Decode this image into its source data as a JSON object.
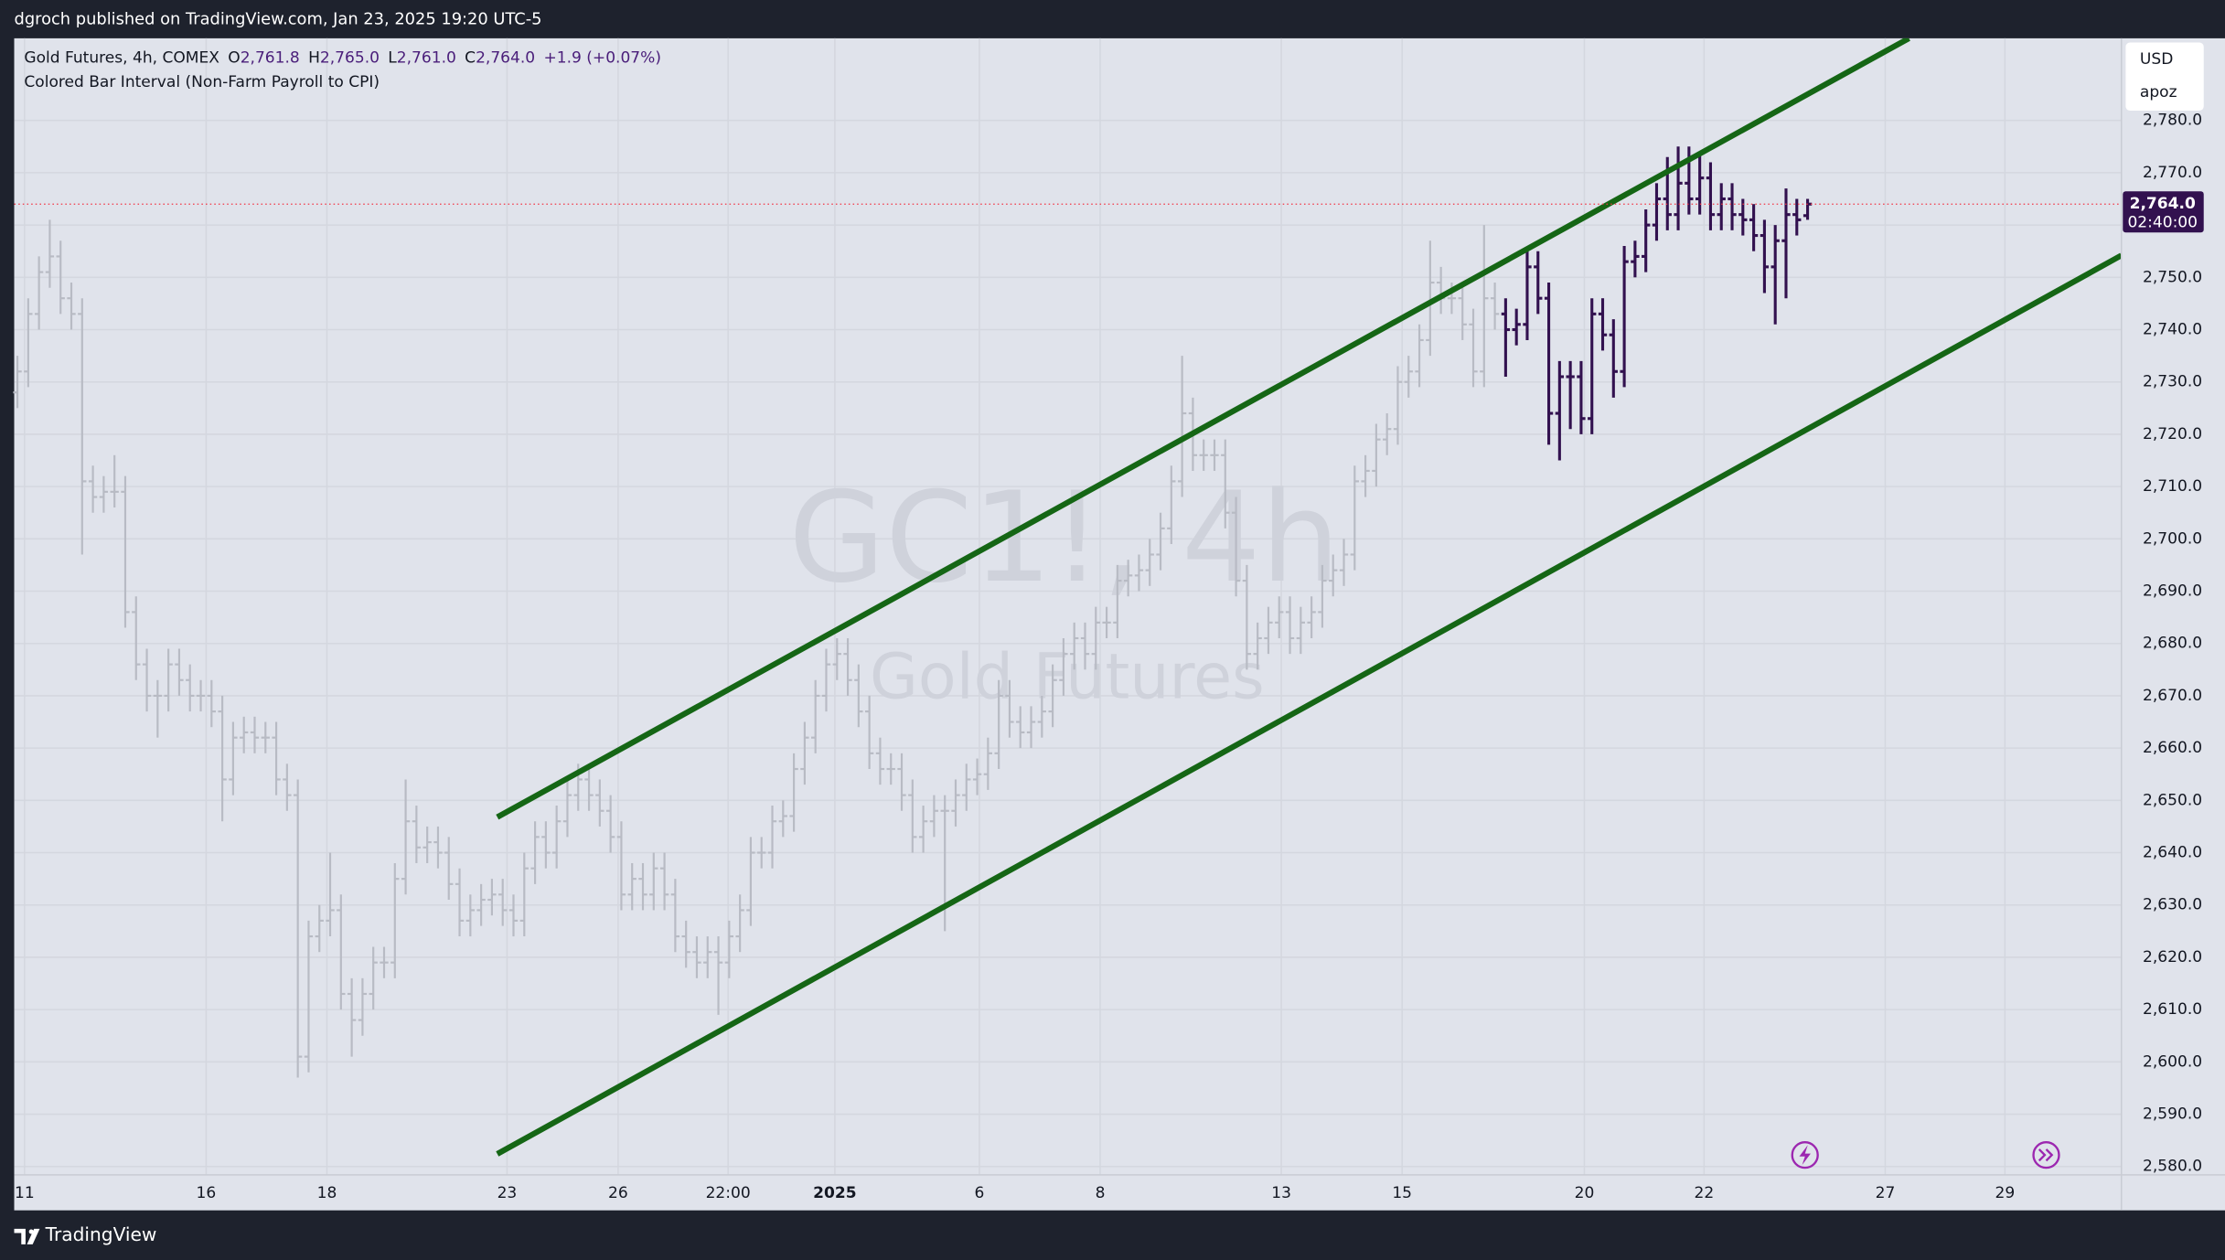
{
  "page": {
    "header": "dgroch published on TradingView.com, Jan 23, 2025 19:20 UTC-5",
    "brand": "TradingView",
    "currency": "USD",
    "user": "apoz"
  },
  "chart_data": {
    "type": "ohlc",
    "grid": true,
    "watermark": [
      "GC1!, 4h",
      "Gold Futures"
    ],
    "legend": {
      "symbol": "Gold Futures, 4h, COMEX",
      "fields": [
        {
          "key": "O",
          "value": "2,761.8"
        },
        {
          "key": "H",
          "value": "2,765.0"
        },
        {
          "key": "L",
          "value": "2,761.0"
        },
        {
          "key": "C",
          "value": "2,764.0"
        }
      ],
      "change": "+1.9 (+0.07%)",
      "indicator": "Colored Bar Interval (Non-Farm Payroll to CPI)"
    },
    "xlim": [
      -0.3,
      195.1
    ],
    "xticks": [
      {
        "value": 0.66,
        "label": "11"
      },
      {
        "value": 17.5,
        "label": "16"
      },
      {
        "value": 28.7,
        "label": "18"
      },
      {
        "value": 45.4,
        "label": "23"
      },
      {
        "value": 55.7,
        "label": "26"
      },
      {
        "value": 65.9,
        "label": "22:00"
      },
      {
        "value": 75.8,
        "label": "2025"
      },
      {
        "value": 89.2,
        "label": "6"
      },
      {
        "value": 100.4,
        "label": "8"
      },
      {
        "value": 117.2,
        "label": "13"
      },
      {
        "value": 128.4,
        "label": "15"
      },
      {
        "value": 145.3,
        "label": "20"
      },
      {
        "value": 156.4,
        "label": "22"
      },
      {
        "value": 173.2,
        "label": "27"
      },
      {
        "value": 184.3,
        "label": "29"
      }
    ],
    "ylim": [
      2578.4,
      2795.7
    ],
    "yticks": [
      {
        "value": 2580,
        "label": "2,580.0"
      },
      {
        "value": 2590,
        "label": "2,590.0"
      },
      {
        "value": 2600,
        "label": "2,600.0"
      },
      {
        "value": 2610,
        "label": "2,610.0"
      },
      {
        "value": 2620,
        "label": "2,620.0"
      },
      {
        "value": 2630,
        "label": "2,630.0"
      },
      {
        "value": 2640,
        "label": "2,640.0"
      },
      {
        "value": 2650,
        "label": "2,650.0"
      },
      {
        "value": 2660,
        "label": "2,660.0"
      },
      {
        "value": 2670,
        "label": "2,670.0"
      },
      {
        "value": 2680,
        "label": "2,680.0"
      },
      {
        "value": 2690,
        "label": "2,690.0"
      },
      {
        "value": 2700,
        "label": "2,700.0"
      },
      {
        "value": 2710,
        "label": "2,710.0"
      },
      {
        "value": 2720,
        "label": "2,720.0"
      },
      {
        "value": 2730,
        "label": "2,730.0"
      },
      {
        "value": 2740,
        "label": "2,740.0"
      },
      {
        "value": 2750,
        "label": "2,750.0"
      },
      {
        "value": 2760,
        "label": "2,760.0"
      },
      {
        "value": 2770,
        "label": "2,770.0"
      },
      {
        "value": 2780,
        "label": "2,780.0"
      }
    ],
    "last_price": {
      "value": 2764,
      "label": "2,764.0",
      "countdown": "02:40:00",
      "color": "#32114f",
      "line_color": "#f23645"
    },
    "trend_lines": [
      {
        "color": "#156615",
        "x": [
          44.5,
          175.4
        ],
        "y": [
          2646.8,
          2795.7
        ]
      },
      {
        "color": "#156615",
        "x": [
          44.5,
          195.1
        ],
        "y": [
          2582.4,
          2754.2
        ]
      }
    ],
    "series": [
      {
        "color": "#b8bbc4",
        "x": [
          0,
          1,
          2,
          3,
          4,
          5,
          6,
          7,
          8,
          9,
          10,
          11,
          12,
          13,
          14,
          15,
          16,
          17,
          18,
          19,
          20,
          21,
          22,
          23,
          24,
          25,
          26,
          27,
          28,
          29,
          30,
          31,
          32,
          33,
          34,
          35,
          36,
          37,
          38,
          39,
          40,
          41,
          42,
          43,
          44,
          45,
          46,
          47,
          48,
          49,
          50,
          51,
          52,
          53,
          54,
          55,
          56,
          57,
          58,
          59,
          60,
          61,
          62,
          63,
          64,
          65,
          66,
          67,
          68,
          69,
          70,
          71,
          72,
          73,
          74,
          75,
          76,
          77,
          78,
          79,
          80,
          81,
          82,
          83,
          84,
          85,
          86,
          87,
          88,
          89,
          90,
          91,
          92,
          93,
          94,
          95,
          96,
          97,
          98,
          99,
          100,
          101,
          102,
          103,
          104,
          105,
          106,
          107,
          108,
          109,
          110,
          111,
          112,
          113,
          114,
          115,
          116,
          117,
          118,
          119,
          120,
          121,
          122,
          123,
          124,
          125,
          126,
          127,
          128,
          129,
          130,
          131,
          132,
          133,
          134,
          135,
          136,
          137
        ],
        "open": [
          2728,
          2732,
          2743,
          2751,
          2754,
          2746,
          2743,
          2711,
          2708,
          2709,
          2709,
          2686,
          2676,
          2670,
          2670,
          2676,
          2673,
          2670,
          2670,
          2667,
          2654,
          2662,
          2663,
          2662,
          2662,
          2654,
          2651,
          2601,
          2624,
          2627,
          2629,
          2613,
          2608,
          2613,
          2619,
          2619,
          2635,
          2646,
          2641,
          2642,
          2640,
          2634,
          2627,
          2629,
          2631,
          2632,
          2629,
          2627,
          2637,
          2643,
          2640,
          2646,
          2651,
          2654,
          2651,
          2648,
          2643,
          2632,
          2635,
          2632,
          2637,
          2632,
          2624,
          2621,
          2619,
          2621,
          2619,
          2624,
          2629,
          2640,
          2640,
          2646,
          2647,
          2656,
          2662,
          2670,
          2676,
          2678,
          2673,
          2667,
          2659,
          2656,
          2656,
          2651,
          2643,
          2646,
          2648,
          2648,
          2651,
          2654,
          2655,
          2659,
          2670,
          2665,
          2663,
          2665,
          2667,
          2673,
          2678,
          2681,
          2678,
          2684,
          2684,
          2692,
          2693,
          2694,
          2697,
          2702,
          2711,
          2724,
          2716,
          2716,
          2716,
          2705,
          2692,
          2678,
          2681,
          2684,
          2686,
          2681,
          2684,
          2686,
          2692,
          2694,
          2697,
          2711,
          2713,
          2719,
          2721,
          2730,
          2732,
          2738,
          2749,
          2746,
          2746,
          2741,
          2732,
          2746
        ],
        "high": [
          2735,
          2746,
          2754,
          2761,
          2757,
          2749,
          2746,
          2714,
          2712,
          2716,
          2712,
          2689,
          2679,
          2673,
          2679,
          2679,
          2676,
          2673,
          2673,
          2670,
          2665,
          2666,
          2666,
          2665,
          2665,
          2657,
          2654,
          2627,
          2630,
          2640,
          2632,
          2616,
          2616,
          2622,
          2622,
          2638,
          2654,
          2649,
          2645,
          2645,
          2643,
          2637,
          2632,
          2634,
          2635,
          2635,
          2632,
          2640,
          2646,
          2646,
          2649,
          2654,
          2657,
          2657,
          2654,
          2651,
          2646,
          2638,
          2638,
          2640,
          2640,
          2635,
          2627,
          2624,
          2624,
          2624,
          2627,
          2632,
          2643,
          2643,
          2649,
          2650,
          2659,
          2665,
          2673,
          2679,
          2681,
          2681,
          2676,
          2670,
          2662,
          2659,
          2659,
          2654,
          2649,
          2651,
          2651,
          2654,
          2657,
          2658,
          2662,
          2673,
          2673,
          2668,
          2668,
          2670,
          2676,
          2681,
          2684,
          2684,
          2687,
          2687,
          2695,
          2696,
          2697,
          2700,
          2705,
          2714,
          2735,
          2727,
          2719,
          2719,
          2719,
          2708,
          2695,
          2684,
          2687,
          2689,
          2689,
          2687,
          2689,
          2695,
          2697,
          2700,
          2714,
          2716,
          2722,
          2724,
          2733,
          2735,
          2741,
          2757,
          2752,
          2749,
          2749,
          2744,
          2760,
          2749
        ],
        "low": [
          2725,
          2729,
          2740,
          2748,
          2743,
          2740,
          2697,
          2705,
          2705,
          2706,
          2683,
          2673,
          2667,
          2662,
          2667,
          2670,
          2667,
          2667,
          2664,
          2646,
          2651,
          2659,
          2659,
          2659,
          2651,
          2648,
          2597,
          2598,
          2621,
          2624,
          2610,
          2601,
          2605,
          2610,
          2616,
          2616,
          2632,
          2638,
          2638,
          2637,
          2631,
          2624,
          2624,
          2626,
          2628,
          2626,
          2624,
          2624,
          2634,
          2637,
          2637,
          2643,
          2648,
          2648,
          2645,
          2640,
          2629,
          2629,
          2629,
          2629,
          2629,
          2621,
          2618,
          2616,
          2616,
          2609,
          2616,
          2621,
          2626,
          2637,
          2637,
          2643,
          2644,
          2653,
          2659,
          2667,
          2673,
          2670,
          2664,
          2656,
          2653,
          2653,
          2648,
          2640,
          2640,
          2643,
          2625,
          2645,
          2648,
          2651,
          2652,
          2656,
          2662,
          2660,
          2660,
          2662,
          2664,
          2670,
          2675,
          2675,
          2675,
          2681,
          2681,
          2689,
          2690,
          2691,
          2694,
          2699,
          2708,
          2713,
          2713,
          2713,
          2702,
          2689,
          2675,
          2675,
          2678,
          2681,
          2678,
          2678,
          2681,
          2683,
          2689,
          2691,
          2694,
          2708,
          2710,
          2716,
          2718,
          2727,
          2729,
          2735,
          2743,
          2743,
          2738,
          2729,
          2729,
          2740
        ],
        "close": [
          2732,
          2743,
          2751,
          2754,
          2746,
          2743,
          2711,
          2708,
          2709,
          2709,
          2686,
          2676,
          2670,
          2670,
          2676,
          2673,
          2670,
          2670,
          2667,
          2654,
          2662,
          2663,
          2662,
          2662,
          2654,
          2651,
          2601,
          2624,
          2627,
          2629,
          2613,
          2608,
          2613,
          2619,
          2619,
          2635,
          2646,
          2641,
          2642,
          2640,
          2634,
          2627,
          2629,
          2631,
          2632,
          2629,
          2627,
          2637,
          2643,
          2640,
          2646,
          2651,
          2654,
          2651,
          2648,
          2643,
          2632,
          2635,
          2632,
          2637,
          2632,
          2624,
          2621,
          2619,
          2621,
          2619,
          2624,
          2629,
          2640,
          2640,
          2646,
          2647,
          2656,
          2662,
          2670,
          2676,
          2678,
          2673,
          2667,
          2659,
          2656,
          2656,
          2651,
          2643,
          2646,
          2648,
          2648,
          2651,
          2654,
          2655,
          2659,
          2670,
          2665,
          2663,
          2665,
          2667,
          2673,
          2678,
          2681,
          2678,
          2684,
          2684,
          2692,
          2693,
          2694,
          2697,
          2702,
          2711,
          2724,
          2716,
          2716,
          2716,
          2705,
          2692,
          2678,
          2681,
          2684,
          2686,
          2681,
          2684,
          2686,
          2692,
          2694,
          2697,
          2711,
          2713,
          2719,
          2721,
          2730,
          2732,
          2738,
          2749,
          2746,
          2746,
          2741,
          2732,
          2746,
          2743
        ]
      },
      {
        "color": "#32114f",
        "x": [
          138,
          139,
          140,
          141,
          142,
          143,
          144,
          145,
          146,
          147,
          148,
          149,
          150,
          151,
          152,
          153,
          154,
          155,
          156,
          157,
          158,
          159,
          160,
          161,
          162,
          163,
          164,
          165,
          166
        ],
        "open": [
          2743,
          2740,
          2741,
          2752,
          2746,
          2724,
          2731,
          2731,
          2723,
          2743,
          2739,
          2732,
          2753,
          2754,
          2760,
          2765,
          2762,
          2768,
          2765,
          2769,
          2762,
          2765,
          2762,
          2761,
          2758,
          2752,
          2757,
          2762,
          2761.8
        ],
        "high": [
          2746,
          2744,
          2755,
          2755,
          2749,
          2734,
          2734,
          2734,
          2746,
          2746,
          2742,
          2756,
          2757,
          2763,
          2768,
          2773,
          2775,
          2775,
          2774,
          2772,
          2768,
          2768,
          2765,
          2764,
          2761,
          2760,
          2767,
          2765,
          2765
        ],
        "low": [
          2731,
          2737,
          2738,
          2743,
          2718,
          2715,
          2721,
          2720,
          2720,
          2736,
          2727,
          2729,
          2750,
          2751,
          2757,
          2759,
          2759,
          2762,
          2762,
          2759,
          2759,
          2759,
          2758,
          2755,
          2747,
          2741,
          2746,
          2758,
          2761
        ],
        "close": [
          2740,
          2741,
          2752,
          2746,
          2724,
          2731,
          2731,
          2723,
          2743,
          2739,
          2732,
          2753,
          2754,
          2760,
          2765,
          2762,
          2768,
          2765,
          2769,
          2762,
          2765,
          2762,
          2761,
          2758,
          2752,
          2757,
          2762,
          2761,
          2764
        ]
      }
    ]
  }
}
